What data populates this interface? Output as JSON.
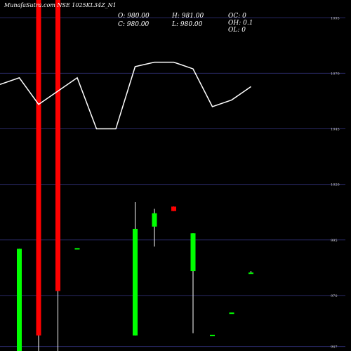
{
  "chart_data": {
    "type": "candlestick",
    "title": "MunafaSutra.com NSE 1025KL34Z_N1",
    "ohlc_text": {
      "o": "O: 980.00",
      "h": "H: 981.00",
      "c": "C: 980.00",
      "l": "L: 980.00",
      "oc": "OC: 0",
      "oh": "OH: 0.1",
      "ol": "OL: 0"
    },
    "y_ticks": [
      947,
      970,
      995,
      1020,
      1045,
      1070,
      1095
    ],
    "ylim": [
      945,
      1103
    ],
    "grid": true,
    "colors": {
      "up": "#00ff00",
      "down": "#ff0000",
      "line": "#ffffff",
      "grid": "#2a2a66",
      "background": "#000000"
    },
    "candles": [
      {
        "x": 1,
        "open": 942,
        "close": 991,
        "high": 991,
        "low": 940
      },
      {
        "x": 2,
        "open": 1150,
        "close": 952,
        "high": 1150,
        "low": 940
      },
      {
        "x": 3,
        "open": 1150,
        "close": 972,
        "high": 1150,
        "low": 945
      },
      {
        "x": 4,
        "open": 991,
        "close": 991,
        "high": 991,
        "low": 991
      },
      {
        "x": 7,
        "open": 952,
        "close": 1000,
        "high": 1012,
        "low": 952
      },
      {
        "x": 8,
        "open": 1001,
        "close": 1007,
        "high": 1009,
        "low": 992
      },
      {
        "x": 9,
        "open": 1010,
        "close": 1008,
        "high": 1010,
        "low": 1008
      },
      {
        "x": 10,
        "open": 981,
        "close": 998,
        "high": 998,
        "low": 953
      },
      {
        "x": 11,
        "open": 952,
        "close": 952,
        "high": 952,
        "low": 952
      },
      {
        "x": 12,
        "open": 962,
        "close": 962,
        "high": 962,
        "low": 962
      },
      {
        "x": 13,
        "open": 980,
        "close": 980,
        "high": 981,
        "low": 980
      }
    ],
    "line_series": {
      "points": [
        {
          "x": 0,
          "y": 1065
        },
        {
          "x": 1,
          "y": 1068
        },
        {
          "x": 2,
          "y": 1056
        },
        {
          "x": 3,
          "y": 1062
        },
        {
          "x": 4,
          "y": 1068
        },
        {
          "x": 5,
          "y": 1045
        },
        {
          "x": 6,
          "y": 1045
        },
        {
          "x": 7,
          "y": 1073
        },
        {
          "x": 8,
          "y": 1075
        },
        {
          "x": 9,
          "y": 1075
        },
        {
          "x": 10,
          "y": 1072
        },
        {
          "x": 11,
          "y": 1055
        },
        {
          "x": 12,
          "y": 1058
        },
        {
          "x": 13,
          "y": 1064
        }
      ]
    }
  }
}
